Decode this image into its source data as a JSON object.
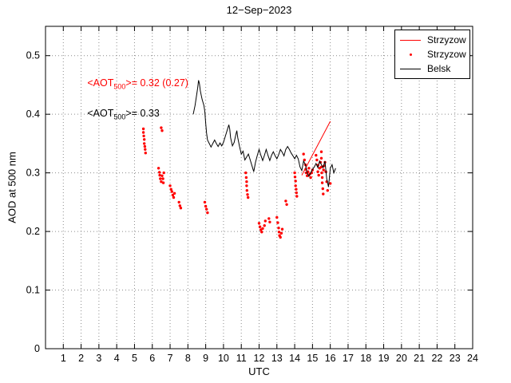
{
  "chart_data": {
    "type": "line+scatter",
    "title": "12−Sep−2023",
    "xlabel": "UTC",
    "ylabel": "AOD at 500 nm",
    "xlim": [
      0,
      24
    ],
    "ylim": [
      0,
      0.55
    ],
    "xticks": [
      1,
      2,
      3,
      4,
      5,
      6,
      7,
      8,
      9,
      10,
      11,
      12,
      13,
      14,
      15,
      16,
      17,
      18,
      19,
      20,
      21,
      22,
      23,
      24
    ],
    "yticks": [
      0,
      0.1,
      0.2,
      0.3,
      0.4,
      0.5
    ],
    "grid": true,
    "grid_color": "#8c8c8c",
    "axes_color": "#000000",
    "legend": {
      "position": "top-right",
      "entries": [
        {
          "label": "Strzyzow",
          "type": "line",
          "color": "#ff0000"
        },
        {
          "label": "Strzyzow",
          "type": "scatter",
          "color": "#ff0000"
        },
        {
          "label": "Belsk",
          "type": "line",
          "color": "#000000"
        }
      ]
    },
    "annotations": [
      {
        "pre": "<AOT",
        "sub": "500",
        "post": ">= 0.32 (0.27)",
        "x": 2.35,
        "y": 0.452,
        "color": "#ff0000"
      },
      {
        "pre": "<AOT",
        "sub": "500",
        "post": ">= 0.33",
        "x": 2.35,
        "y": 0.4,
        "color": "#000000"
      }
    ],
    "series": [
      {
        "name": "strzyzow-fit-line",
        "type": "line",
        "color": "#ff0000",
        "points": [
          [
            14.4,
            0.296
          ],
          [
            16.0,
            0.388
          ]
        ]
      },
      {
        "name": "strzyzow-scatter",
        "type": "scatter",
        "color": "#ff0000",
        "points": [
          [
            5.5,
            0.375
          ],
          [
            5.5,
            0.369
          ],
          [
            5.52,
            0.363
          ],
          [
            5.55,
            0.357
          ],
          [
            5.55,
            0.35
          ],
          [
            5.58,
            0.345
          ],
          [
            5.6,
            0.34
          ],
          [
            5.62,
            0.334
          ],
          [
            6.5,
            0.377
          ],
          [
            6.55,
            0.372
          ],
          [
            6.35,
            0.308
          ],
          [
            6.4,
            0.301
          ],
          [
            6.42,
            0.296
          ],
          [
            6.45,
            0.29
          ],
          [
            6.5,
            0.285
          ],
          [
            6.55,
            0.295
          ],
          [
            6.6,
            0.29
          ],
          [
            6.62,
            0.283
          ],
          [
            6.65,
            0.3
          ],
          [
            7.0,
            0.278
          ],
          [
            7.05,
            0.272
          ],
          [
            7.1,
            0.268
          ],
          [
            7.15,
            0.262
          ],
          [
            7.2,
            0.258
          ],
          [
            7.25,
            0.265
          ],
          [
            7.5,
            0.25
          ],
          [
            7.55,
            0.244
          ],
          [
            7.6,
            0.24
          ],
          [
            8.95,
            0.25
          ],
          [
            9.0,
            0.243
          ],
          [
            9.05,
            0.238
          ],
          [
            9.1,
            0.232
          ],
          [
            11.25,
            0.3
          ],
          [
            11.28,
            0.292
          ],
          [
            11.3,
            0.285
          ],
          [
            11.3,
            0.278
          ],
          [
            11.32,
            0.27
          ],
          [
            11.35,
            0.263
          ],
          [
            11.38,
            0.258
          ],
          [
            12.0,
            0.214
          ],
          [
            12.05,
            0.208
          ],
          [
            12.1,
            0.203
          ],
          [
            12.15,
            0.199
          ],
          [
            12.2,
            0.205
          ],
          [
            12.3,
            0.21
          ],
          [
            12.35,
            0.218
          ],
          [
            12.55,
            0.222
          ],
          [
            12.6,
            0.216
          ],
          [
            13.0,
            0.224
          ],
          [
            13.05,
            0.215
          ],
          [
            13.1,
            0.206
          ],
          [
            13.12,
            0.199
          ],
          [
            13.15,
            0.193
          ],
          [
            13.2,
            0.19
          ],
          [
            13.25,
            0.197
          ],
          [
            13.3,
            0.204
          ],
          [
            13.5,
            0.252
          ],
          [
            13.55,
            0.246
          ],
          [
            14.0,
            0.3
          ],
          [
            14.02,
            0.293
          ],
          [
            14.05,
            0.286
          ],
          [
            14.05,
            0.278
          ],
          [
            14.08,
            0.272
          ],
          [
            14.1,
            0.266
          ],
          [
            14.12,
            0.26
          ],
          [
            14.5,
            0.332
          ],
          [
            14.55,
            0.322
          ],
          [
            14.6,
            0.314
          ],
          [
            14.62,
            0.306
          ],
          [
            14.65,
            0.3
          ],
          [
            14.7,
            0.295
          ],
          [
            14.75,
            0.302
          ],
          [
            14.8,
            0.308
          ],
          [
            14.85,
            0.298
          ],
          [
            14.9,
            0.292
          ],
          [
            14.95,
            0.3
          ],
          [
            15.0,
            0.305
          ],
          [
            15.2,
            0.33
          ],
          [
            15.25,
            0.322
          ],
          [
            15.3,
            0.313
          ],
          [
            15.3,
            0.302
          ],
          [
            15.35,
            0.296
          ],
          [
            15.4,
            0.308
          ],
          [
            15.45,
            0.318
          ],
          [
            15.5,
            0.336
          ],
          [
            15.5,
            0.325
          ],
          [
            15.5,
            0.31
          ],
          [
            15.52,
            0.3
          ],
          [
            15.55,
            0.292
          ],
          [
            15.55,
            0.283
          ],
          [
            15.58,
            0.273
          ],
          [
            15.6,
            0.264
          ],
          [
            15.62,
            0.305
          ],
          [
            15.65,
            0.312
          ],
          [
            15.7,
            0.318
          ],
          [
            15.75,
            0.302
          ],
          [
            15.8,
            0.285
          ],
          [
            15.85,
            0.27
          ],
          [
            16.0,
            0.282
          ]
        ]
      },
      {
        "name": "belsk-line",
        "type": "line",
        "color": "#000000",
        "points": [
          [
            8.3,
            0.4
          ],
          [
            8.4,
            0.415
          ],
          [
            8.45,
            0.425
          ],
          [
            8.5,
            0.435
          ],
          [
            8.55,
            0.445
          ],
          [
            8.6,
            0.458
          ],
          [
            8.65,
            0.452
          ],
          [
            8.7,
            0.44
          ],
          [
            8.75,
            0.432
          ],
          [
            8.8,
            0.425
          ],
          [
            8.85,
            0.42
          ],
          [
            8.9,
            0.415
          ],
          [
            8.95,
            0.405
          ],
          [
            9.0,
            0.385
          ],
          [
            9.05,
            0.368
          ],
          [
            9.1,
            0.356
          ],
          [
            9.2,
            0.35
          ],
          [
            9.3,
            0.344
          ],
          [
            9.4,
            0.35
          ],
          [
            9.5,
            0.356
          ],
          [
            9.6,
            0.35
          ],
          [
            9.7,
            0.345
          ],
          [
            9.8,
            0.351
          ],
          [
            9.9,
            0.346
          ],
          [
            10.0,
            0.352
          ],
          [
            10.1,
            0.362
          ],
          [
            10.2,
            0.372
          ],
          [
            10.3,
            0.382
          ],
          [
            10.35,
            0.375
          ],
          [
            10.4,
            0.36
          ],
          [
            10.5,
            0.346
          ],
          [
            10.6,
            0.352
          ],
          [
            10.7,
            0.366
          ],
          [
            10.75,
            0.372
          ],
          [
            10.8,
            0.36
          ],
          [
            10.9,
            0.345
          ],
          [
            11.0,
            0.332
          ],
          [
            11.1,
            0.337
          ],
          [
            11.2,
            0.322
          ],
          [
            11.3,
            0.327
          ],
          [
            11.4,
            0.332
          ],
          [
            11.5,
            0.322
          ],
          [
            11.6,
            0.312
          ],
          [
            11.7,
            0.302
          ],
          [
            11.8,
            0.318
          ],
          [
            11.9,
            0.33
          ],
          [
            12.0,
            0.34
          ],
          [
            12.1,
            0.33
          ],
          [
            12.2,
            0.321
          ],
          [
            12.3,
            0.33
          ],
          [
            12.4,
            0.34
          ],
          [
            12.5,
            0.33
          ],
          [
            12.6,
            0.321
          ],
          [
            12.7,
            0.33
          ],
          [
            12.8,
            0.336
          ],
          [
            12.9,
            0.329
          ],
          [
            13.0,
            0.324
          ],
          [
            13.1,
            0.331
          ],
          [
            13.2,
            0.34
          ],
          [
            13.3,
            0.335
          ],
          [
            13.4,
            0.329
          ],
          [
            13.5,
            0.34
          ],
          [
            13.6,
            0.345
          ],
          [
            13.7,
            0.34
          ],
          [
            13.8,
            0.334
          ],
          [
            13.9,
            0.329
          ],
          [
            14.0,
            0.324
          ],
          [
            14.1,
            0.33
          ],
          [
            14.2,
            0.324
          ],
          [
            14.3,
            0.31
          ],
          [
            14.4,
            0.304
          ],
          [
            14.5,
            0.32
          ],
          [
            14.6,
            0.314
          ],
          [
            14.7,
            0.3
          ],
          [
            14.8,
            0.294
          ],
          [
            14.9,
            0.3
          ],
          [
            15.0,
            0.306
          ],
          [
            15.1,
            0.31
          ],
          [
            15.2,
            0.316
          ],
          [
            15.3,
            0.309
          ],
          [
            15.4,
            0.32
          ],
          [
            15.5,
            0.314
          ],
          [
            15.6,
            0.309
          ],
          [
            15.7,
            0.32
          ],
          [
            15.8,
            0.29
          ],
          [
            15.9,
            0.276
          ],
          [
            16.0,
            0.308
          ],
          [
            16.1,
            0.314
          ],
          [
            16.2,
            0.3
          ],
          [
            16.3,
            0.308
          ]
        ]
      }
    ]
  }
}
